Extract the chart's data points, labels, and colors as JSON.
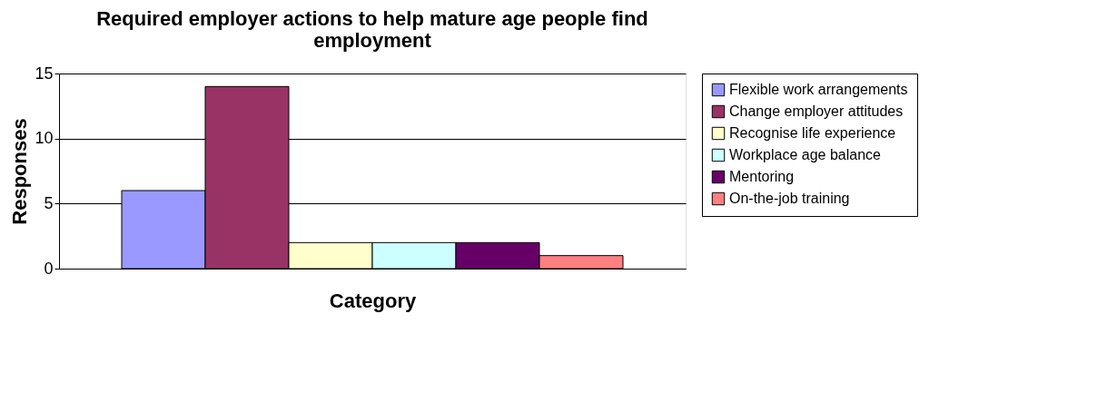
{
  "chart_data": {
    "type": "bar",
    "title": "Required employer actions to help mature age people find employment",
    "xlabel": "Category",
    "ylabel": "Responses",
    "categories": [
      null
    ],
    "series": [
      {
        "name": "Flexible work arrangements",
        "color": "#9999ff",
        "values": [
          6
        ]
      },
      {
        "name": "Change employer attitudes",
        "color": "#993366",
        "values": [
          14
        ]
      },
      {
        "name": "Recognise life experience",
        "color": "#ffffcc",
        "values": [
          2
        ]
      },
      {
        "name": "Workplace age balance",
        "color": "#ccffff",
        "values": [
          2
        ]
      },
      {
        "name": "Mentoring",
        "color": "#660066",
        "values": [
          2
        ]
      },
      {
        "name": "On-the-job training",
        "color": "#ff8080",
        "values": [
          1
        ]
      }
    ],
    "ylim": [
      0,
      15
    ],
    "yticks": [
      0,
      5,
      10,
      15
    ],
    "grid": "y",
    "legend": "right",
    "tick_labels": "y"
  }
}
